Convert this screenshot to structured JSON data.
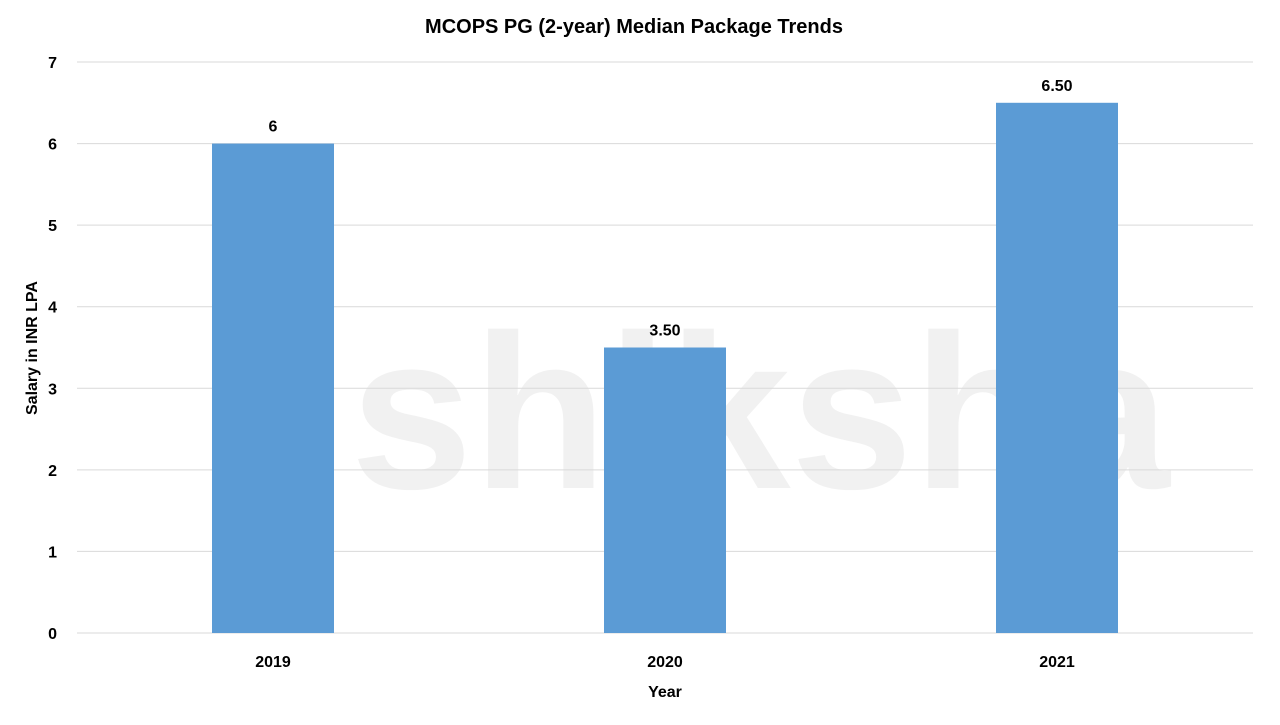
{
  "watermark": "shiksha",
  "chart_data": {
    "type": "bar",
    "title": "MCOPS PG (2-year) Median Package Trends",
    "xlabel": "Year",
    "ylabel": "Salary in INR LPA",
    "categories": [
      "2019",
      "2020",
      "2021"
    ],
    "values": [
      6,
      3.5,
      6.5
    ],
    "data_labels": [
      "6",
      "3.50",
      "6.50"
    ],
    "ylim": [
      0,
      7
    ],
    "yticks": [
      "0",
      "1",
      "2",
      "3",
      "4",
      "5",
      "6",
      "7"
    ],
    "grid": true,
    "legend": "none",
    "bar_color": "#5b9bd5",
    "grid_color": "#d9d9d9"
  }
}
